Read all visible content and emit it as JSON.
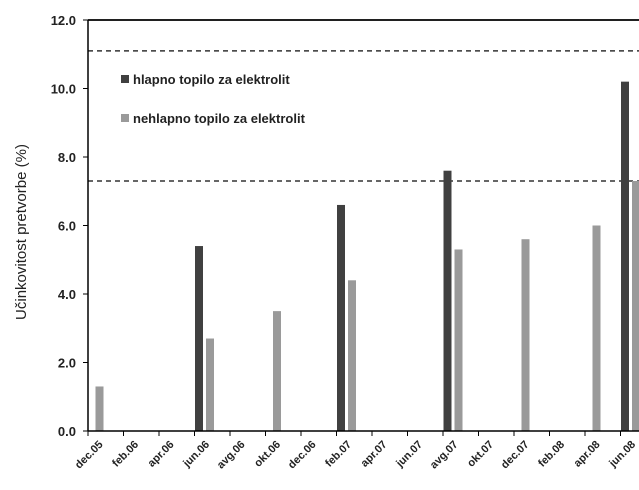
{
  "chart_data": {
    "type": "bar",
    "title": "",
    "xlabel": "",
    "ylabel": "Učinkovitost pretvorbe (%)",
    "ylim": [
      0,
      12
    ],
    "y_ticks": [
      "0.0",
      "2.0",
      "4.0",
      "6.0",
      "8.0",
      "10.0",
      "12.0"
    ],
    "y_tick_values": [
      0,
      2,
      4,
      6,
      8,
      10,
      12
    ],
    "categories": [
      "dec.05",
      "feb.06",
      "apr.06",
      "jun.06",
      "avg.06",
      "okt.06",
      "dec.06",
      "feb.07",
      "apr.07",
      "jun.07",
      "avg.07",
      "okt.07",
      "dec.07",
      "feb.08",
      "apr.08",
      "jun.08"
    ],
    "series": [
      {
        "name": "hlapno topilo za elektrolit",
        "color": "#404040",
        "values": [
          null,
          null,
          null,
          5.4,
          null,
          null,
          null,
          6.6,
          null,
          null,
          7.6,
          null,
          null,
          null,
          null,
          10.2
        ]
      },
      {
        "name": "nehlapno topilo za elektrolit",
        "color": "#9a9a9a",
        "values": [
          1.3,
          null,
          null,
          2.7,
          null,
          3.5,
          null,
          4.4,
          null,
          null,
          5.3,
          null,
          5.6,
          null,
          6.0,
          7.3
        ]
      }
    ],
    "reference_lines": [
      11.1,
      7.3
    ],
    "legend_position": "top-left",
    "grid": false
  }
}
